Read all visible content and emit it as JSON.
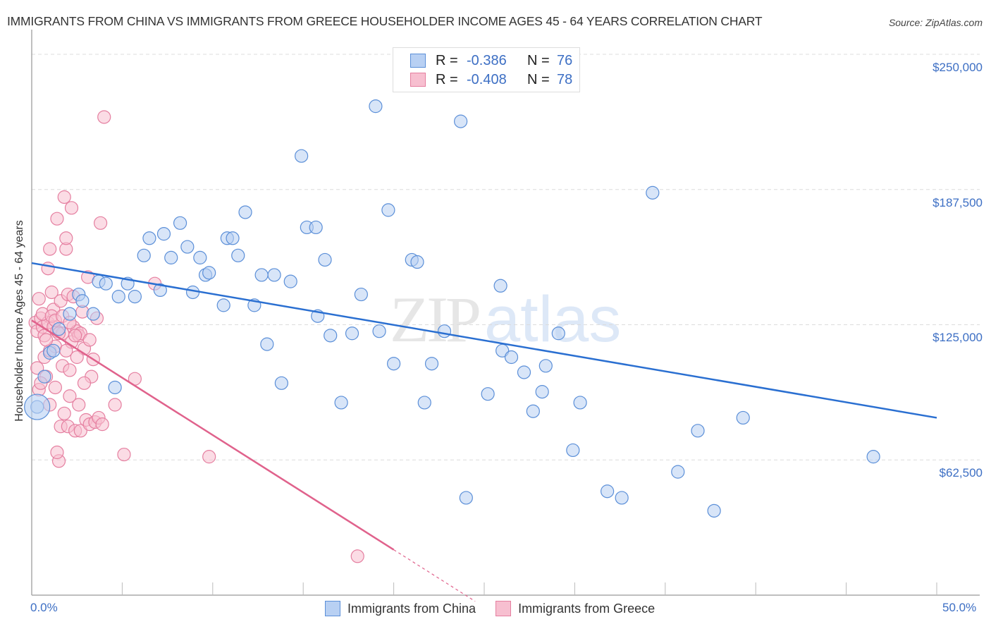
{
  "header": {
    "title": "IMMIGRANTS FROM CHINA VS IMMIGRANTS FROM GREECE HOUSEHOLDER INCOME AGES 45 - 64 YEARS CORRELATION CHART",
    "source": "Source: ZipAtlas.com"
  },
  "watermark": {
    "zip": "ZIP",
    "atlas": "atlas"
  },
  "legend_top": {
    "china": {
      "r_label": "R =",
      "r_value": "-0.386",
      "n_label": "N =",
      "n_value": "76"
    },
    "greece": {
      "r_label": "R =",
      "r_value": "-0.408",
      "n_label": "N =",
      "n_value": "78"
    }
  },
  "legend_bottom": {
    "china": "Immigrants from China",
    "greece": "Immigrants from Greece"
  },
  "axes": {
    "ylabel": "Householder Income Ages 45 - 64 years",
    "y_ticks": [
      "$250,000",
      "$187,500",
      "$125,000",
      "$62,500"
    ],
    "x_ticks": [
      "0.0%",
      "50.0%"
    ]
  },
  "colors": {
    "china_fill": "#b8d0f3",
    "china_stroke": "#5b8fd8",
    "china_line": "#2a6fd1",
    "greece_fill": "#f7bfd0",
    "greece_stroke": "#e57fa0",
    "greece_line": "#e0628c",
    "tick_label": "#3d6fc4"
  },
  "chart_data": {
    "type": "scatter",
    "title": "IMMIGRANTS FROM CHINA VS IMMIGRANTS FROM GREECE HOUSEHOLDER INCOME AGES 45 - 64 YEARS CORRELATION CHART",
    "xlabel": "",
    "ylabel": "Householder Income Ages 45 - 64 years",
    "xlim": [
      0,
      50
    ],
    "ylim": [
      0,
      250000
    ],
    "x_unit": "%",
    "grid": "horizontal dashed",
    "legend_position": "top-center + bottom",
    "series": [
      {
        "name": "Immigrants from China",
        "R": -0.386,
        "N": 76,
        "trend": {
          "x0": 0,
          "y0": 153500,
          "x1": 50,
          "y1": 82000
        },
        "points": [
          [
            0.3,
            87000
          ],
          [
            0.7,
            101000
          ],
          [
            1.0,
            112000
          ],
          [
            1.2,
            113000
          ],
          [
            1.5,
            123000
          ],
          [
            2.1,
            130000
          ],
          [
            2.6,
            139000
          ],
          [
            2.8,
            136000
          ],
          [
            3.4,
            130000
          ],
          [
            3.7,
            145000
          ],
          [
            4.1,
            144000
          ],
          [
            4.6,
            96000
          ],
          [
            4.8,
            138000
          ],
          [
            5.3,
            144000
          ],
          [
            5.7,
            138000
          ],
          [
            6.2,
            157000
          ],
          [
            6.5,
            165000
          ],
          [
            7.1,
            141000
          ],
          [
            7.3,
            167000
          ],
          [
            7.7,
            156000
          ],
          [
            8.2,
            172000
          ],
          [
            8.6,
            161000
          ],
          [
            8.9,
            140000
          ],
          [
            9.3,
            156000
          ],
          [
            9.6,
            148000
          ],
          [
            9.8,
            149000
          ],
          [
            10.6,
            134000
          ],
          [
            10.8,
            165000
          ],
          [
            11.1,
            165000
          ],
          [
            11.4,
            157000
          ],
          [
            11.8,
            177000
          ],
          [
            12.3,
            134000
          ],
          [
            12.7,
            148000
          ],
          [
            13.0,
            116000
          ],
          [
            13.4,
            148000
          ],
          [
            13.8,
            98000
          ],
          [
            14.3,
            145000
          ],
          [
            14.9,
            203000
          ],
          [
            15.2,
            170000
          ],
          [
            15.7,
            170000
          ],
          [
            15.8,
            129000
          ],
          [
            16.2,
            155000
          ],
          [
            16.5,
            120000
          ],
          [
            17.1,
            89000
          ],
          [
            17.7,
            121000
          ],
          [
            18.2,
            139000
          ],
          [
            19.0,
            226000
          ],
          [
            19.2,
            122000
          ],
          [
            19.7,
            178000
          ],
          [
            20.0,
            107000
          ],
          [
            21.0,
            155000
          ],
          [
            21.3,
            154000
          ],
          [
            21.7,
            89000
          ],
          [
            22.1,
            107000
          ],
          [
            22.8,
            122000
          ],
          [
            23.7,
            219000
          ],
          [
            24.0,
            45000
          ],
          [
            25.2,
            93000
          ],
          [
            25.9,
            143000
          ],
          [
            26.0,
            113000
          ],
          [
            26.5,
            110000
          ],
          [
            27.2,
            103000
          ],
          [
            27.7,
            85000
          ],
          [
            28.2,
            94000
          ],
          [
            28.4,
            106000
          ],
          [
            29.1,
            121000
          ],
          [
            29.9,
            67000
          ],
          [
            30.3,
            89000
          ],
          [
            31.8,
            48000
          ],
          [
            32.6,
            45000
          ],
          [
            34.3,
            186000
          ],
          [
            35.7,
            57000
          ],
          [
            36.8,
            76000
          ],
          [
            39.3,
            82000
          ],
          [
            46.5,
            64000
          ],
          [
            37.7,
            39000
          ]
        ]
      },
      {
        "name": "Immigrants from Greece",
        "R": -0.408,
        "N": 78,
        "trend": {
          "x0": 0,
          "y0": 127000,
          "x1": 20,
          "y1": 21000,
          "dashed_to_x": 24.5
        },
        "points": [
          [
            0.2,
            126000
          ],
          [
            0.3,
            122000
          ],
          [
            0.3,
            105000
          ],
          [
            0.4,
            137000
          ],
          [
            0.4,
            95000
          ],
          [
            0.5,
            128000
          ],
          [
            0.6,
            124000
          ],
          [
            0.7,
            110000
          ],
          [
            0.7,
            120000
          ],
          [
            0.8,
            101000
          ],
          [
            0.9,
            126000
          ],
          [
            0.9,
            151000
          ],
          [
            1.0,
            160000
          ],
          [
            1.0,
            113000
          ],
          [
            1.1,
            140000
          ],
          [
            1.2,
            132000
          ],
          [
            1.2,
            124000
          ],
          [
            1.3,
            115000
          ],
          [
            1.3,
            96000
          ],
          [
            1.4,
            174000
          ],
          [
            1.4,
            122000
          ],
          [
            1.5,
            62000
          ],
          [
            1.6,
            136000
          ],
          [
            1.6,
            78000
          ],
          [
            1.7,
            121000
          ],
          [
            1.7,
            106000
          ],
          [
            1.8,
            184000
          ],
          [
            1.8,
            84000
          ],
          [
            1.9,
            160000
          ],
          [
            1.9,
            165000
          ],
          [
            2.0,
            139000
          ],
          [
            2.0,
            78000
          ],
          [
            2.1,
            104000
          ],
          [
            2.1,
            92000
          ],
          [
            2.2,
            179000
          ],
          [
            2.2,
            117000
          ],
          [
            2.3,
            124000
          ],
          [
            2.3,
            138000
          ],
          [
            2.4,
            76000
          ],
          [
            2.5,
            122000
          ],
          [
            2.6,
            120000
          ],
          [
            2.6,
            88000
          ],
          [
            2.7,
            121000
          ],
          [
            2.7,
            76000
          ],
          [
            2.8,
            131000
          ],
          [
            2.9,
            114000
          ],
          [
            3.0,
            81000
          ],
          [
            3.1,
            147000
          ],
          [
            3.2,
            79000
          ],
          [
            3.3,
            101000
          ],
          [
            3.4,
            109000
          ],
          [
            3.5,
            80000
          ],
          [
            3.6,
            128000
          ],
          [
            3.7,
            82000
          ],
          [
            3.8,
            172000
          ],
          [
            3.9,
            79000
          ],
          [
            4.0,
            221000
          ],
          [
            4.6,
            88000
          ],
          [
            5.1,
            65000
          ],
          [
            5.7,
            100000
          ],
          [
            6.8,
            144000
          ],
          [
            9.8,
            64000
          ],
          [
            18.0,
            18000
          ],
          [
            0.6,
            130000
          ],
          [
            0.8,
            118000
          ],
          [
            1.1,
            129000
          ],
          [
            1.3,
            127000
          ],
          [
            1.5,
            121000
          ],
          [
            1.7,
            129000
          ],
          [
            1.9,
            113000
          ],
          [
            2.1,
            126000
          ],
          [
            2.4,
            120000
          ],
          [
            0.5,
            98000
          ],
          [
            1.0,
            88000
          ],
          [
            2.9,
            98000
          ],
          [
            3.2,
            118000
          ],
          [
            1.4,
            66000
          ],
          [
            2.5,
            110000
          ]
        ]
      }
    ]
  }
}
